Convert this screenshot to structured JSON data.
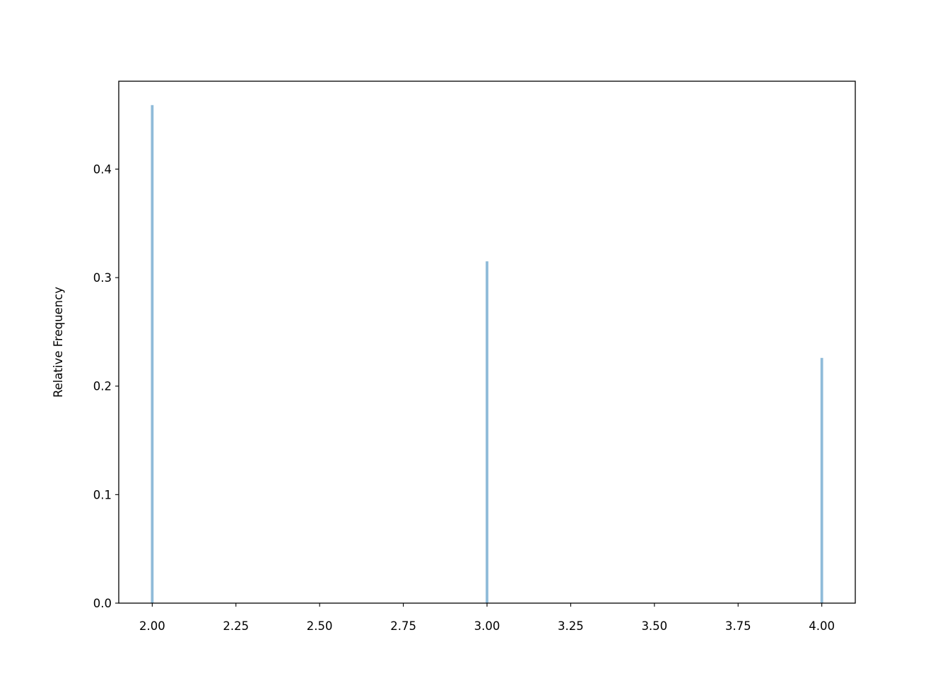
{
  "chart_data": {
    "type": "bar",
    "title": "",
    "xlabel": "",
    "ylabel": "Relative Frequency",
    "x": [
      2.0,
      3.0,
      4.0
    ],
    "values": [
      0.459,
      0.315,
      0.226
    ],
    "bar_width": 0.008,
    "xlim": [
      1.9,
      4.1
    ],
    "ylim": [
      0,
      0.481
    ],
    "xticks": [
      2.0,
      2.25,
      2.5,
      2.75,
      3.0,
      3.25,
      3.5,
      3.75,
      4.0
    ],
    "xtick_labels": [
      "2.00",
      "2.25",
      "2.50",
      "2.75",
      "3.00",
      "3.25",
      "3.50",
      "3.75",
      "4.00"
    ],
    "yticks": [
      0.0,
      0.1,
      0.2,
      0.3,
      0.4
    ],
    "ytick_labels": [
      "0.0",
      "0.1",
      "0.2",
      "0.3",
      "0.4"
    ],
    "grid": false,
    "legend": "none",
    "bar_color": "#1f77b4",
    "bar_alpha": 0.5
  }
}
